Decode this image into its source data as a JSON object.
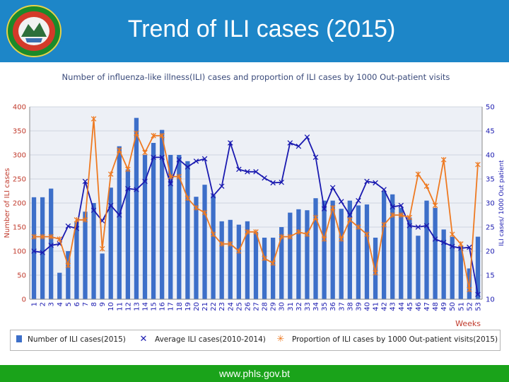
{
  "slide": {
    "title": "Trend of ILI cases (2015)",
    "footer": "www.phls.gov.bt"
  },
  "colors": {
    "header_bg": "#1d86c8",
    "footer_bg": "#1aa31a",
    "bar": "#3d6fc9",
    "average_line": "#1a1ab0",
    "proportion_line": "#ee7a22",
    "left_axis_text": "#c0392b",
    "right_axis_text": "#1a1ab0",
    "weeks_label": "#c0392b"
  },
  "chart_data": {
    "type": "bar",
    "title": "Number of influenza-like illness(ILI) cases and proportion of ILI cases by 1000 Out-patient visits",
    "xlabel": "Weeks",
    "ylabel": "Number of ILI cases",
    "y2label": "ILI cases/ 1000 Out patient",
    "ylim": [
      0,
      400
    ],
    "y2lim": [
      10,
      50
    ],
    "yticks": [
      0,
      50,
      100,
      150,
      200,
      250,
      300,
      350,
      400
    ],
    "y2ticks": [
      10,
      15,
      20,
      25,
      30,
      35,
      40,
      45,
      50
    ],
    "categories": [
      "1",
      "2",
      "3",
      "4",
      "5",
      "6",
      "7",
      "8",
      "9",
      "10",
      "11",
      "12",
      "13",
      "14",
      "15",
      "16",
      "17",
      "18",
      "19",
      "20",
      "21",
      "22",
      "23",
      "24",
      "25",
      "26",
      "27",
      "28",
      "29",
      "30",
      "31",
      "32",
      "33",
      "34",
      "35",
      "36",
      "37",
      "38",
      "39",
      "40",
      "41",
      "42",
      "43",
      "44",
      "45",
      "46",
      "47",
      "48",
      "49",
      "50",
      "51",
      "52",
      "53"
    ],
    "series": [
      {
        "name": "Number of ILI cases(2015)",
        "type": "bar",
        "axis": "left",
        "values": [
          212,
          212,
          230,
          55,
          100,
          160,
          182,
          200,
          95,
          232,
          318,
          270,
          377,
          300,
          325,
          352,
          300,
          300,
          287,
          213,
          238,
          216,
          162,
          165,
          155,
          162,
          140,
          128,
          128,
          150,
          180,
          187,
          185,
          210,
          205,
          205,
          188,
          205,
          195,
          197,
          128,
          225,
          218,
          190,
          170,
          132,
          205,
          190,
          145,
          130,
          110,
          64,
          130
        ]
      },
      {
        "name": "Average ILI cases(2010-2014)",
        "type": "line",
        "axis": "left",
        "values": [
          100,
          97,
          112,
          115,
          152,
          147,
          245,
          185,
          163,
          195,
          175,
          230,
          228,
          245,
          295,
          295,
          240,
          290,
          275,
          287,
          292,
          215,
          235,
          325,
          270,
          265,
          265,
          252,
          242,
          243,
          325,
          318,
          337,
          295,
          188,
          232,
          203,
          175,
          205,
          245,
          242,
          228,
          192,
          195,
          153,
          150,
          153,
          125,
          118,
          110,
          106,
          108,
          10
        ]
      },
      {
        "name": "Proportion of ILI cases by 1000 Out-patient visits(2015)",
        "type": "line",
        "axis": "right",
        "values": [
          23,
          23,
          23,
          22.5,
          17,
          26.5,
          26.5,
          47.5,
          20.5,
          36,
          41,
          37,
          44.5,
          40.5,
          44,
          44,
          35.5,
          35.5,
          31,
          29,
          28,
          23.5,
          21.5,
          21.5,
          20,
          24,
          24,
          18.5,
          17.5,
          23,
          23,
          24,
          23.5,
          27,
          22.5,
          29,
          22.5,
          26.5,
          25,
          23.5,
          15.5,
          25.5,
          27.5,
          27.5,
          27,
          36,
          33.5,
          29.5,
          39,
          23.5,
          21.5,
          12,
          38
        ]
      }
    ],
    "legend_position": "bottom"
  }
}
